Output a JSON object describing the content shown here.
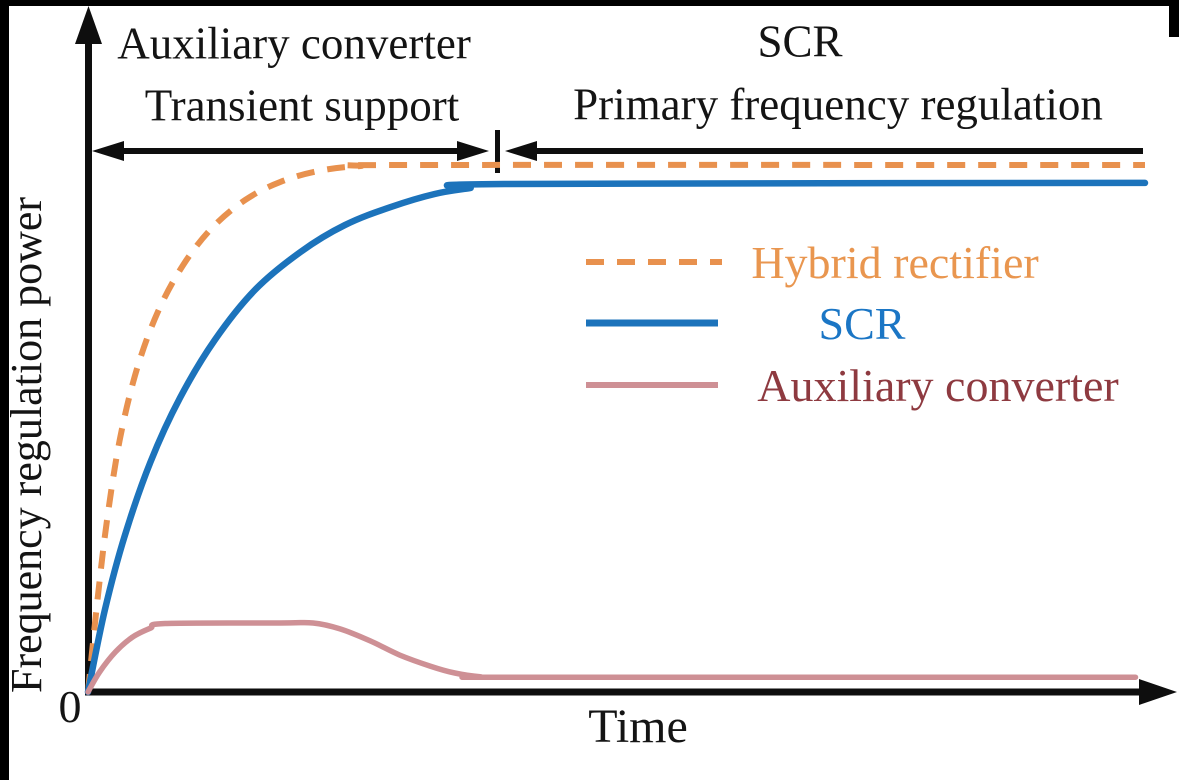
{
  "figure": {
    "phase_left": {
      "line1": "Auxiliary converter",
      "line2": "Transient support"
    },
    "phase_right": {
      "line1": "SCR",
      "line2": "Primary frequency regulation"
    },
    "y_axis_label": "Frequency regulation power",
    "x_axis_label": "Time",
    "origin_label": "0"
  },
  "legend": {
    "items": [
      {
        "label": "Hybrid rectifier",
        "text_color": "#E9964F",
        "line_color": "#E8914E",
        "line_style": "dashed"
      },
      {
        "label": "SCR",
        "text_color": "#1B76C5",
        "line_color": "#1C73BB",
        "line_style": "solid"
      },
      {
        "label": "Auxiliary converter",
        "text_color": "#8E3A40",
        "line_color": "#CE9095",
        "line_style": "solid"
      }
    ]
  },
  "chart_data": {
    "type": "line",
    "title": "",
    "xlabel": "Time",
    "ylabel": "Frequency regulation power",
    "x_axis": {
      "range": [
        0,
        100
      ],
      "ticks": "none (qualitative time axis)"
    },
    "y_axis": {
      "range": [
        0,
        100
      ],
      "ticks": "none (qualitative power axis)",
      "origin_tick": "0"
    },
    "grid": false,
    "legend_position": "center-right",
    "series": [
      {
        "name": "Hybrid rectifier",
        "color": "#E8914E",
        "line_style": "dashed",
        "line_width": 6,
        "points": [
          [
            0,
            0
          ],
          [
            0.9,
            17.5
          ],
          [
            1.8,
            32.6
          ],
          [
            3.0,
            47.8
          ],
          [
            4.6,
            61.1
          ],
          [
            6.6,
            72.1
          ],
          [
            9.0,
            81.0
          ],
          [
            11.7,
            88.0
          ],
          [
            14.9,
            93.4
          ],
          [
            18.2,
            96.8
          ],
          [
            21.9,
            98.9
          ],
          [
            25.7,
            99.8
          ],
          [
            31.4,
            100
          ],
          [
            100,
            100
          ]
        ]
      },
      {
        "name": "SCR",
        "color": "#1C73BB",
        "line_style": "solid",
        "line_width": 6.5,
        "points": [
          [
            0,
            0
          ],
          [
            1.6,
            15.6
          ],
          [
            3.5,
            29.8
          ],
          [
            5.9,
            43.6
          ],
          [
            8.7,
            55.8
          ],
          [
            12.0,
            66.8
          ],
          [
            15.8,
            76.3
          ],
          [
            20.1,
            83.5
          ],
          [
            24.3,
            88.6
          ],
          [
            28.6,
            92.0
          ],
          [
            32.8,
            94.5
          ],
          [
            36.1,
            95.6
          ],
          [
            39.4,
            96.4
          ],
          [
            100,
            96.6
          ]
        ]
      },
      {
        "name": "Auxiliary converter",
        "color": "#CE9095",
        "line_style": "solid",
        "line_width": 5.5,
        "points": [
          [
            0,
            0
          ],
          [
            1.1,
            3.8
          ],
          [
            2.6,
            7.6
          ],
          [
            4.2,
            10.4
          ],
          [
            5.9,
            12.1
          ],
          [
            7.3,
            13.0
          ],
          [
            18.2,
            13.1
          ],
          [
            21.3,
            13.1
          ],
          [
            23.8,
            12.0
          ],
          [
            26.7,
            9.7
          ],
          [
            29.5,
            7.0
          ],
          [
            32.4,
            4.9
          ],
          [
            34.7,
            3.6
          ],
          [
            37.1,
            2.9
          ],
          [
            40.9,
            2.8
          ],
          [
            99.1,
            2.8
          ]
        ]
      }
    ],
    "annotations": {
      "divider_t": 38.7,
      "phases": [
        {
          "labels": [
            "Auxiliary converter",
            "Transient support"
          ],
          "t_start": 0,
          "t_end": 38.7
        },
        {
          "labels": [
            "SCR",
            "Primary frequency regulation"
          ],
          "t_start": 38.7,
          "t_end": 100
        }
      ]
    }
  },
  "colors": {
    "axis": "#0E0E0E",
    "text": "#141414"
  }
}
